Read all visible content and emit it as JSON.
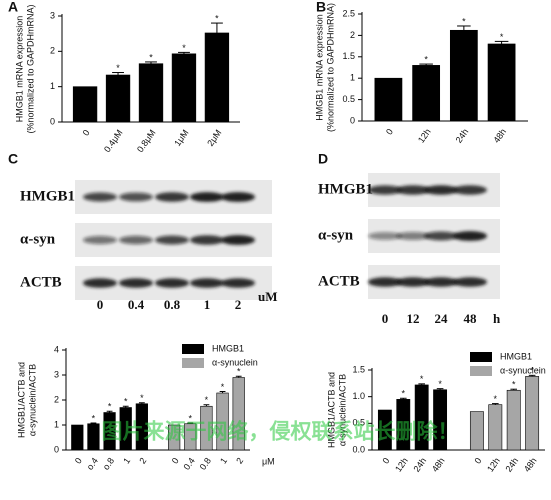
{
  "chart_data": [
    {
      "type": "bar",
      "panel": "A",
      "ylabel": [
        "HMGB1 mRNA expression",
        "(%normalized to GAPDHmRNA)"
      ],
      "categories": [
        "0",
        "0.4μM",
        "0.8μM",
        "1μM",
        "2μM"
      ],
      "values": [
        1,
        1.33,
        1.65,
        1.93,
        2.52
      ],
      "errors": [
        0,
        0.07,
        0.05,
        0.04,
        0.28
      ],
      "markers": [
        null,
        "*",
        "*",
        "*",
        "*"
      ],
      "color": "#000000",
      "ylim": [
        0,
        3
      ],
      "yticks": [
        0,
        1,
        2,
        3
      ]
    },
    {
      "type": "bar",
      "panel": "B",
      "ylabel": [
        "HMGB1 mRNA expression",
        "(%normalized to GAPDHmRNA)"
      ],
      "categories": [
        "0",
        "12h",
        "24h",
        "48h"
      ],
      "values": [
        1,
        1.3,
        2.12,
        1.8
      ],
      "errors": [
        0,
        0.03,
        0.1,
        0.06
      ],
      "markers": [
        null,
        "*",
        "*",
        "*"
      ],
      "color": "#000000",
      "ylim": [
        0,
        2.5
      ],
      "yticks": [
        0,
        0.5,
        1,
        1.5,
        2,
        2.5
      ]
    },
    {
      "type": "bar",
      "ylabel": [
        "HMGB1/ACTB and",
        "α-synuclein/ACTB"
      ],
      "xunit": "μM",
      "series": [
        {
          "name": "HMGB1",
          "color": "#000000",
          "categories": [
            "0",
            "o.4",
            "o.8",
            "1",
            "2"
          ],
          "values": [
            1,
            1.05,
            1.5,
            1.7,
            1.85
          ],
          "errors": [
            0,
            0.03,
            0.05,
            0.05,
            0.04
          ],
          "markers": [
            null,
            "*",
            "*",
            "*",
            "*"
          ]
        },
        {
          "name": "α-synuclein",
          "color": "#a6a6a6",
          "categories": [
            "0",
            "0.4",
            "0.8",
            "1",
            "2"
          ],
          "values": [
            1,
            1.05,
            1.75,
            2.28,
            2.9
          ],
          "errors": [
            0,
            0.03,
            0.06,
            0.06,
            0.05
          ],
          "markers": [
            null,
            "*",
            "*",
            "*",
            "*"
          ]
        }
      ],
      "ylim": [
        0,
        4
      ],
      "yticks": [
        0,
        1,
        2,
        3,
        4
      ]
    },
    {
      "type": "bar",
      "ylabel": [
        "HMGB1/ACTB and",
        "α-synuclein/ACTB"
      ],
      "series": [
        {
          "name": "HMGB1",
          "color": "#000000",
          "categories": [
            "0",
            "12h",
            "24h",
            "48h"
          ],
          "values": [
            0.75,
            0.95,
            1.22,
            1.13
          ],
          "errors": [
            0,
            0.02,
            0.02,
            0.02
          ],
          "markers": [
            null,
            "*",
            "*",
            "*"
          ]
        },
        {
          "name": "α-synuclein",
          "color": "#a6a6a6",
          "categories": [
            "0",
            "12h",
            "24h",
            "48h"
          ],
          "values": [
            0.72,
            0.85,
            1.12,
            1.38
          ],
          "errors": [
            0,
            0.02,
            0.02,
            0.02
          ],
          "markers": [
            null,
            "*",
            "*",
            "*"
          ]
        }
      ],
      "ylim": [
        0,
        1.5
      ],
      "yticks": [
        {
          "value": 0,
          "label": "0.0"
        },
        {
          "value": 0.5,
          "label": "0.5"
        },
        {
          "value": 1,
          "label": "1.0"
        },
        {
          "value": 1.5,
          "label": "1.5"
        }
      ]
    }
  ],
  "blots": [
    {
      "panel": "C",
      "rows": [
        "HMGB1",
        "α-syn",
        "ACTB"
      ],
      "lanes": [
        "0",
        "0.4",
        "0.8",
        "1",
        "2"
      ],
      "unit": "uM"
    },
    {
      "panel": "D",
      "rows": [
        "HMGB1",
        "α-syn",
        "ACTB"
      ],
      "lanes": [
        "0",
        "12",
        "24",
        "48"
      ],
      "unit": "h"
    }
  ],
  "watermark": "图片来源于网络，侵权联系站长删除！"
}
